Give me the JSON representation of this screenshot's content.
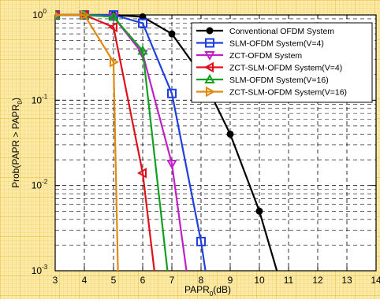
{
  "chart_data": {
    "type": "line",
    "xlabel": "PAPR",
    "xlabel_sub": "0",
    "xlabel_unit": "(dB)",
    "ylabel": "Prob(PAPR > PAPR",
    "ylabel_sub": "0",
    "ylabel_end": ")",
    "xlim": [
      3,
      14
    ],
    "ylim": [
      0.001,
      1
    ],
    "yscale": "log",
    "grid": true,
    "legend_position": "top-right",
    "xticks": [
      "3",
      "4",
      "5",
      "6",
      "7",
      "8",
      "9",
      "10",
      "11",
      "12",
      "13",
      "14"
    ],
    "yticks": [
      {
        "value": 1,
        "base": "10",
        "exp": "0"
      },
      {
        "value": 0.1,
        "base": "10",
        "exp": "-1"
      },
      {
        "value": 0.01,
        "base": "10",
        "exp": "-2"
      },
      {
        "value": 0.001,
        "base": "10",
        "exp": "-3"
      }
    ],
    "series": [
      {
        "name": "Conventional OFDM System",
        "color": "#000000",
        "marker": "circle",
        "x": [
          3,
          4,
          5,
          6,
          7,
          8,
          9,
          10,
          10.6
        ],
        "y": [
          1,
          1,
          1,
          0.95,
          0.6,
          0.2,
          0.04,
          0.005,
          0.001
        ]
      },
      {
        "name": "SLM-OFDM System(V=4)",
        "color": "#1f3fdf",
        "marker": "square",
        "x": [
          3,
          4,
          5,
          6,
          7,
          8,
          8.15
        ],
        "y": [
          1,
          1,
          1,
          0.8,
          0.12,
          0.0022,
          0.001
        ]
      },
      {
        "name": "ZCT-OFDM System",
        "color": "#c020c8",
        "marker": "triangle-down",
        "x": [
          3,
          4,
          5,
          6,
          7,
          7.5
        ],
        "y": [
          1,
          1,
          0.95,
          0.35,
          0.018,
          0.001
        ]
      },
      {
        "name": "ZCT-SLM-OFDM System(V=4)",
        "color": "#e0101a",
        "marker": "triangle-left",
        "x": [
          3,
          4,
          5,
          6,
          6.4
        ],
        "y": [
          1,
          1,
          0.72,
          0.014,
          0.001
        ]
      },
      {
        "name": "SLM-OFDM System(V=16)",
        "color": "#10a020",
        "marker": "triangle-up",
        "x": [
          3,
          4,
          5,
          6,
          6.85
        ],
        "y": [
          1,
          1,
          0.95,
          0.38,
          0.001
        ]
      },
      {
        "name": "ZCT-SLM-OFDM System(V=16)",
        "color": "#e08a10",
        "marker": "triangle-right",
        "x": [
          3,
          4,
          5,
          5.15
        ],
        "y": [
          1,
          1,
          0.28,
          0.001
        ]
      }
    ]
  }
}
